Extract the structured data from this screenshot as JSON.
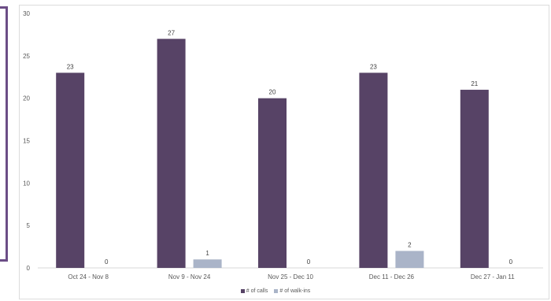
{
  "chart_data": {
    "type": "bar",
    "categories": [
      "Oct 24 - Nov 8",
      "Nov 9 - Nov 24",
      "Nov 25 - Dec 10",
      "Dec 11 - Dec 26",
      "Dec 27 - Jan 11"
    ],
    "series": [
      {
        "name": "# of calls",
        "values": [
          23,
          27,
          20,
          23,
          21
        ],
        "color": "#574366"
      },
      {
        "name": "# of walk-ins",
        "values": [
          0,
          1,
          0,
          2,
          0
        ],
        "color": "#aab4c8"
      }
    ],
    "yticks": [
      0,
      5,
      10,
      15,
      20,
      25,
      30
    ],
    "ylim": [
      0,
      30
    ],
    "grid": false,
    "legend": "bottom-center",
    "title": "",
    "xlabel": "",
    "ylabel": ""
  }
}
